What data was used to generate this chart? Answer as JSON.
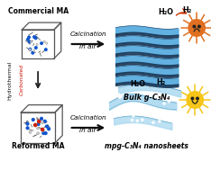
{
  "bg_color": "#ffffff",
  "title_top_left": "Commercial MA",
  "title_bottom_left": "Reformed MA",
  "label_bulk": "Bulk g-C₃N₄",
  "label_sheets": "mpg-C₃N₄ nanosheets",
  "label_calcin": "Calcination",
  "label_in_air": "In air",
  "label_hydrothermal": "Hydrothermal",
  "label_carbonated": "Carbonated",
  "h2o_label": "H₂O",
  "h2_label": "H₂",
  "sun_sad_color": "#e07020",
  "sun_happy_color": "#f5c518",
  "sun_sad_ray": "#e07020",
  "sun_happy_ray": "#f5c518",
  "bulk_layer_blue": "#5aade0",
  "bulk_layer_dark": "#1a3a5a",
  "sheet_color": "#a8d8f0",
  "sheet_edge": "#6aabcc",
  "arrow_color": "#111111",
  "hydrothermal_arrow_color": "#222222",
  "carbonated_text_color": "#cc1100",
  "h2o_arrow_color": "#cc3300",
  "figsize": [
    2.34,
    1.89
  ],
  "dpi": 100
}
